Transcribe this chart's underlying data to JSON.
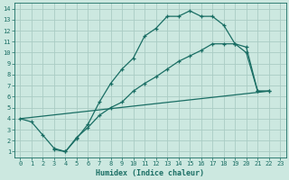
{
  "xlabel": "Humidex (Indice chaleur)",
  "bg_color": "#cce8e0",
  "grid_color": "#aaccc4",
  "line_color": "#1a6e64",
  "xlim": [
    -0.5,
    23.5
  ],
  "ylim": [
    0.5,
    14.5
  ],
  "xticks": [
    0,
    1,
    2,
    3,
    4,
    5,
    6,
    7,
    8,
    9,
    10,
    11,
    12,
    13,
    14,
    15,
    16,
    17,
    18,
    19,
    20,
    21,
    22,
    23
  ],
  "yticks": [
    1,
    2,
    3,
    4,
    5,
    6,
    7,
    8,
    9,
    10,
    11,
    12,
    13,
    14
  ],
  "curve1_x": [
    0,
    1,
    2,
    3,
    4,
    5,
    6,
    7,
    8,
    9,
    10,
    11,
    12,
    13,
    14,
    15,
    16,
    17,
    18,
    19,
    20,
    21,
    22
  ],
  "curve1_y": [
    4.0,
    3.7,
    2.5,
    1.3,
    1.0,
    2.2,
    3.5,
    5.5,
    7.2,
    8.5,
    9.5,
    11.5,
    12.2,
    13.3,
    13.3,
    13.8,
    13.3,
    13.3,
    12.5,
    10.8,
    10.0,
    6.5,
    6.5
  ],
  "curve2_x": [
    0,
    22
  ],
  "curve2_y": [
    4.0,
    6.5
  ],
  "curve3_x": [
    3,
    4,
    5,
    6,
    7,
    8,
    9,
    10,
    11,
    12,
    13,
    14,
    15,
    16,
    17,
    18,
    19,
    20,
    21,
    22
  ],
  "curve3_y": [
    1.2,
    1.0,
    2.3,
    3.2,
    4.3,
    5.0,
    5.5,
    6.5,
    7.2,
    7.8,
    8.5,
    9.2,
    9.7,
    10.2,
    10.8,
    10.8,
    10.8,
    10.5,
    6.5,
    6.5
  ]
}
